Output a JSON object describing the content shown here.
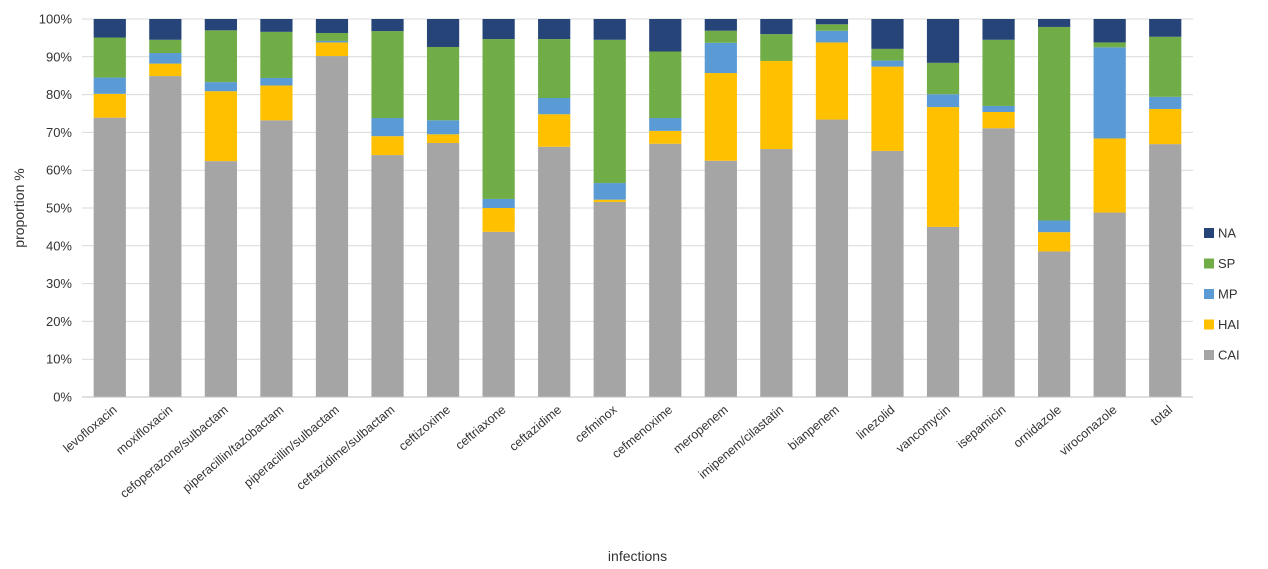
{
  "chart_data": {
    "type": "bar",
    "stacked": true,
    "xlabel": "infections",
    "ylabel": "proportion %",
    "ylim": [
      0,
      100
    ],
    "yticks": [
      "0%",
      "10%",
      "20%",
      "30%",
      "40%",
      "50%",
      "60%",
      "70%",
      "80%",
      "90%",
      "100%"
    ],
    "grid": true,
    "legend_position": "right",
    "categories": [
      "levofloxacin",
      "moxifloxacin",
      "cefoperazone/sulbactam",
      "piperacillin/tazobactam",
      "piperacillin/sulbactam",
      "ceftazidime/sulbactam",
      "ceftizoxime",
      "ceftriaxone",
      "ceftazidime",
      "cefminox",
      "cefmenoxime",
      "meropenem",
      "imipenem/cilastatin",
      "bianpenem",
      "linezolid",
      "vancomycin",
      "isepamicin",
      "ornidazole",
      "viroconazole",
      "total"
    ],
    "series": [
      {
        "name": "CAI",
        "color": "#a5a5a5",
        "values": [
          73.9,
          84.9,
          62.4,
          73.2,
          90.2,
          64.0,
          67.2,
          43.7,
          66.2,
          51.6,
          67.0,
          62.5,
          65.6,
          73.4,
          65.1,
          45.0,
          71.1,
          38.5,
          48.8,
          66.9
        ]
      },
      {
        "name": "HAI",
        "color": "#ffc000",
        "values": [
          6.3,
          3.3,
          18.5,
          9.2,
          3.6,
          5.0,
          2.3,
          6.3,
          8.6,
          0.6,
          3.4,
          23.2,
          23.3,
          20.4,
          22.3,
          31.7,
          4.3,
          5.1,
          19.6,
          9.3
        ]
      },
      {
        "name": "MP",
        "color": "#5b9bd5",
        "values": [
          4.3,
          2.8,
          2.4,
          2.0,
          0.4,
          4.8,
          3.7,
          2.4,
          4.3,
          4.4,
          3.4,
          8.0,
          0.0,
          3.1,
          1.6,
          3.4,
          1.6,
          3.1,
          24.1,
          3.2
        ]
      },
      {
        "name": "SP",
        "color": "#70ad47",
        "values": [
          10.6,
          3.5,
          13.7,
          12.2,
          2.1,
          23.0,
          19.4,
          42.3,
          15.6,
          37.9,
          17.6,
          3.2,
          7.1,
          1.7,
          3.1,
          8.3,
          17.5,
          51.2,
          1.3,
          15.9
        ]
      },
      {
        "name": "NA",
        "color": "#264478",
        "values": [
          4.9,
          5.5,
          3.0,
          3.4,
          3.7,
          3.2,
          7.4,
          5.3,
          5.3,
          5.5,
          8.6,
          3.1,
          4.0,
          1.4,
          7.9,
          11.6,
          5.5,
          2.1,
          6.2,
          4.7
        ]
      }
    ]
  }
}
